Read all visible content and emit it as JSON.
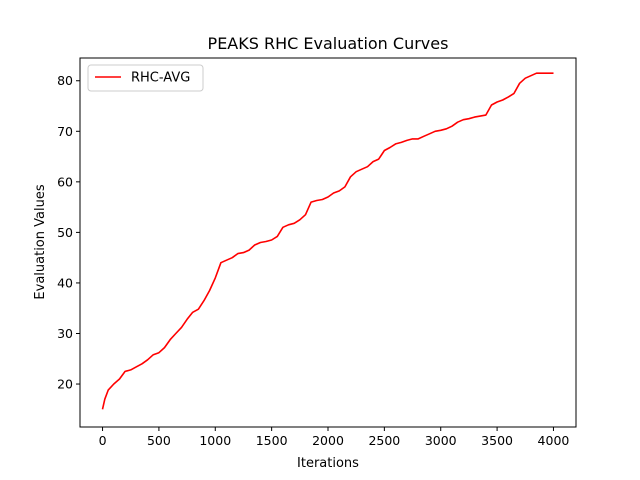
{
  "chart_data": {
    "type": "line",
    "title": "PEAKS RHC Evaluation Curves",
    "xlabel": "Iterations",
    "ylabel": "Evaluation Values",
    "xlim": [
      -200,
      4200
    ],
    "ylim": [
      11.5,
      84.5
    ],
    "xticks": [
      0,
      500,
      1000,
      1500,
      2000,
      2500,
      3000,
      3500,
      4000
    ],
    "yticks": [
      20,
      30,
      40,
      50,
      60,
      70,
      80
    ],
    "grid": false,
    "legend_position": "top-left",
    "series": [
      {
        "name": "RHC-AVG",
        "color": "#ff0000",
        "x": [
          0,
          20,
          50,
          100,
          150,
          200,
          250,
          300,
          350,
          400,
          450,
          500,
          550,
          600,
          650,
          700,
          750,
          800,
          850,
          900,
          950,
          1000,
          1050,
          1100,
          1150,
          1200,
          1250,
          1300,
          1350,
          1400,
          1450,
          1500,
          1550,
          1600,
          1650,
          1700,
          1750,
          1800,
          1850,
          1900,
          1950,
          2000,
          2050,
          2100,
          2150,
          2200,
          2250,
          2300,
          2350,
          2400,
          2450,
          2500,
          2550,
          2600,
          2650,
          2700,
          2750,
          2800,
          2850,
          2900,
          2950,
          3000,
          3050,
          3100,
          3150,
          3200,
          3250,
          3300,
          3350,
          3400,
          3450,
          3500,
          3550,
          3600,
          3650,
          3700,
          3750,
          3800,
          3850,
          3900,
          3950,
          4000
        ],
        "y": [
          15,
          17,
          18.8,
          20,
          21,
          22.5,
          22.8,
          23.4,
          24,
          24.8,
          25.8,
          26.2,
          27.2,
          28.8,
          30,
          31.2,
          32.8,
          34.2,
          34.8,
          36.5,
          38.5,
          41,
          44,
          44.5,
          45,
          45.8,
          46,
          46.5,
          47.5,
          48,
          48.2,
          48.5,
          49.2,
          51,
          51.5,
          51.8,
          52.5,
          53.5,
          56,
          56.3,
          56.5,
          57,
          57.8,
          58.2,
          59,
          61,
          62,
          62.5,
          63,
          64,
          64.5,
          66.2,
          66.8,
          67.5,
          67.8,
          68.2,
          68.5,
          68.5,
          69,
          69.5,
          70,
          70.2,
          70.5,
          71,
          71.8,
          72.3,
          72.5,
          72.8,
          73,
          73.2,
          75.2,
          75.8,
          76.2,
          76.8,
          77.5,
          79.5,
          80.5,
          81,
          81.5,
          81.5,
          81.5,
          81.5
        ]
      }
    ]
  }
}
